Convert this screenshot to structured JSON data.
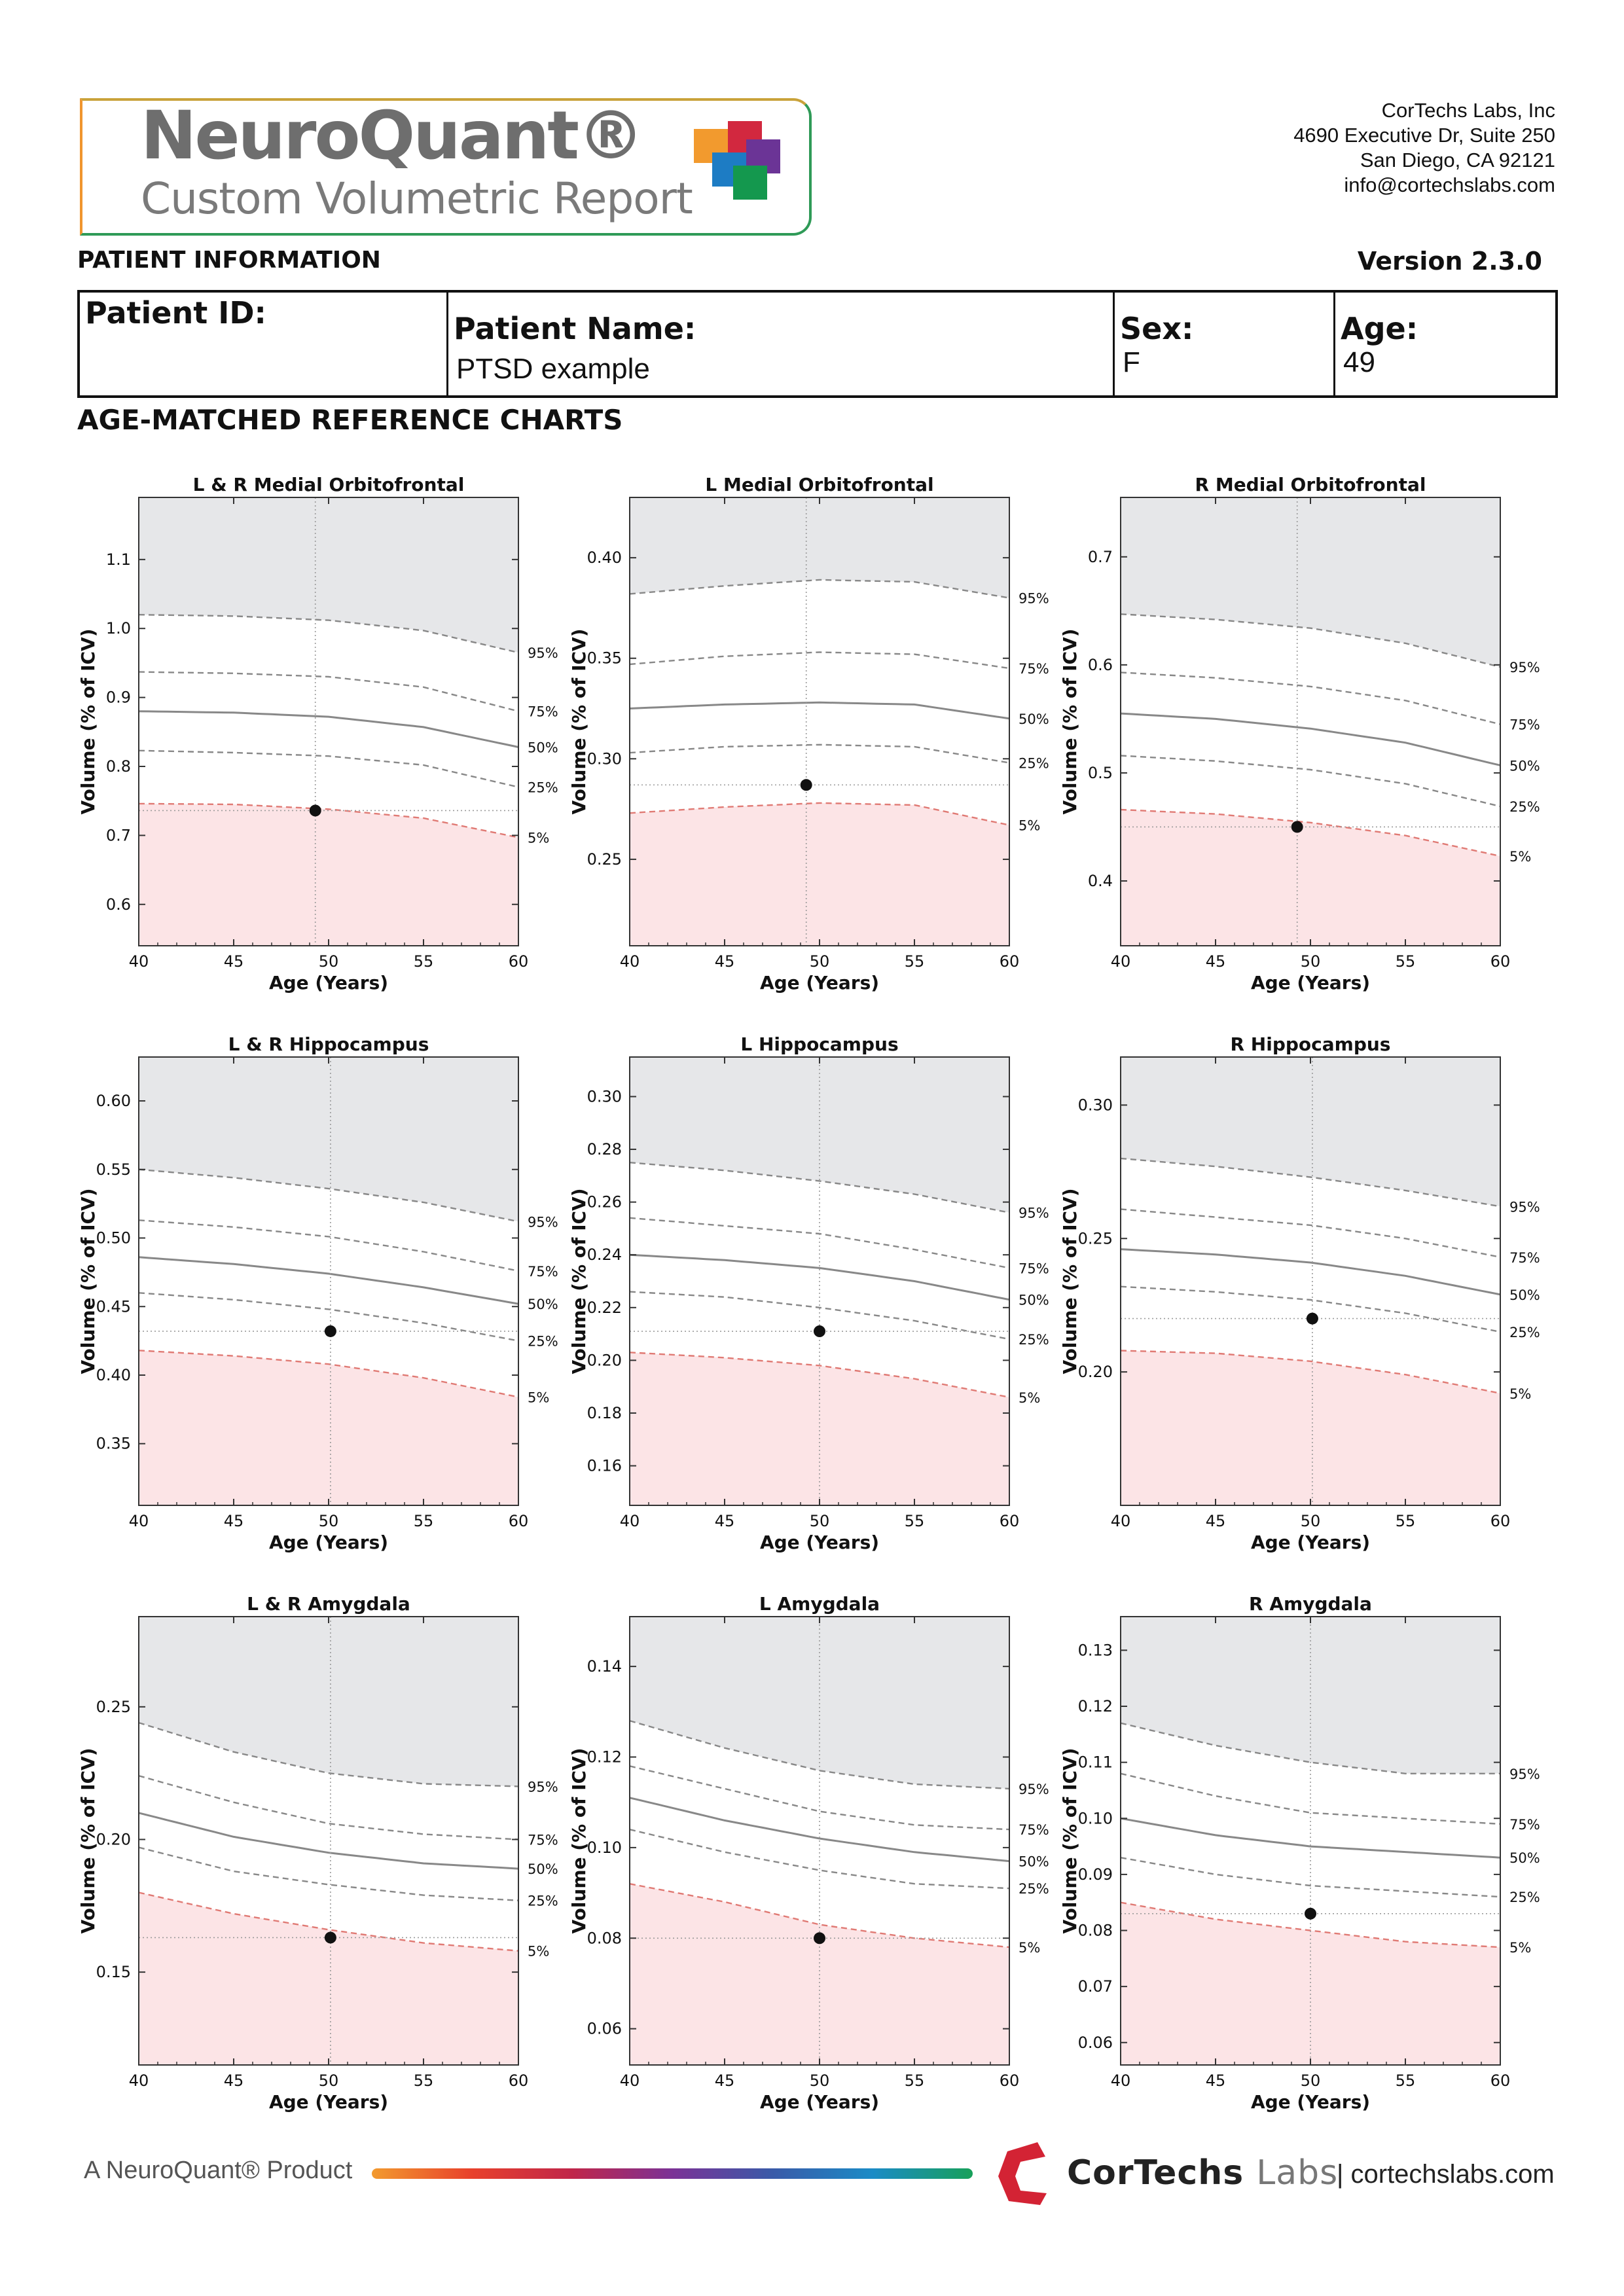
{
  "header": {
    "logo_title": "NeuroQuant®",
    "logo_subtitle": "Custom Volumetric Report",
    "company": {
      "name": "CorTechs Labs, Inc",
      "address1": "4690 Executive Dr, Suite 250",
      "address2": "San Diego, CA 92121",
      "email": "info@cortechslabs.com"
    },
    "patient_info_heading": "PATIENT INFORMATION",
    "version": "Version 2.3.0"
  },
  "patient": {
    "id_label": "Patient ID:",
    "id_value": "",
    "name_label": "Patient Name:",
    "name_value": "PTSD example",
    "sex_label": "Sex:",
    "sex_value": "F",
    "age_label": "Age:",
    "age_value": "49"
  },
  "charts_heading": "AGE-MATCHED REFERENCE CHARTS",
  "colors": {
    "upper_band": "#e6e7e9",
    "lower_band": "#fce4e6",
    "percentile_line": "#888888",
    "fifth_percentile_line": "#e07a74",
    "patient_point": "#111111"
  },
  "chart_data": [
    {
      "type": "line",
      "title": "L & R Medial Orbitofrontal",
      "xlabel": "Age (Years)",
      "ylabel": "Volume (% of ICV)",
      "xlim": [
        40,
        60
      ],
      "ylim": [
        0.54,
        1.19
      ],
      "xticks": [
        40,
        45,
        50,
        55,
        60
      ],
      "yticks": [
        0.6,
        0.7,
        0.8,
        0.9,
        1.0,
        1.1
      ],
      "ytick_labels": [
        "0.6",
        "0.7",
        "0.8",
        "0.9",
        "1.0",
        "1.1"
      ],
      "x": [
        40,
        45,
        50,
        55,
        60
      ],
      "series": [
        {
          "name": "95%",
          "values": [
            1.02,
            1.018,
            1.012,
            0.997,
            0.965
          ]
        },
        {
          "name": "75%",
          "values": [
            0.937,
            0.935,
            0.93,
            0.915,
            0.88
          ]
        },
        {
          "name": "50%",
          "values": [
            0.88,
            0.878,
            0.872,
            0.857,
            0.828
          ]
        },
        {
          "name": "25%",
          "values": [
            0.823,
            0.82,
            0.815,
            0.802,
            0.77
          ]
        },
        {
          "name": "5%",
          "values": [
            0.746,
            0.745,
            0.738,
            0.725,
            0.697
          ]
        }
      ],
      "patient": {
        "age": 49.3,
        "volume": 0.736
      }
    },
    {
      "type": "line",
      "title": "L Medial Orbitofrontal",
      "xlabel": "Age (Years)",
      "ylabel": "Volume (% of ICV)",
      "xlim": [
        40,
        60
      ],
      "ylim": [
        0.207,
        0.43
      ],
      "xticks": [
        40,
        45,
        50,
        55,
        60
      ],
      "yticks": [
        0.25,
        0.3,
        0.35,
        0.4
      ],
      "ytick_labels": [
        "0.25",
        "0.30",
        "0.35",
        "0.40"
      ],
      "x": [
        40,
        45,
        50,
        55,
        60
      ],
      "series": [
        {
          "name": "95%",
          "values": [
            0.382,
            0.386,
            0.389,
            0.388,
            0.38
          ]
        },
        {
          "name": "75%",
          "values": [
            0.347,
            0.351,
            0.353,
            0.352,
            0.345
          ]
        },
        {
          "name": "50%",
          "values": [
            0.325,
            0.327,
            0.328,
            0.327,
            0.32
          ]
        },
        {
          "name": "25%",
          "values": [
            0.303,
            0.306,
            0.307,
            0.306,
            0.298
          ]
        },
        {
          "name": "5%",
          "values": [
            0.273,
            0.276,
            0.278,
            0.277,
            0.267
          ]
        }
      ],
      "patient": {
        "age": 49.3,
        "volume": 0.287
      }
    },
    {
      "type": "line",
      "title": "R Medial Orbitofrontal",
      "xlabel": "Age (Years)",
      "ylabel": "Volume (% of ICV)",
      "xlim": [
        40,
        60
      ],
      "ylim": [
        0.34,
        0.755
      ],
      "xticks": [
        40,
        45,
        50,
        55,
        60
      ],
      "yticks": [
        0.4,
        0.5,
        0.6,
        0.7
      ],
      "ytick_labels": [
        "0.4",
        "0.5",
        "0.6",
        "0.7"
      ],
      "x": [
        40,
        45,
        50,
        55,
        60
      ],
      "series": [
        {
          "name": "95%",
          "values": [
            0.647,
            0.642,
            0.634,
            0.62,
            0.598
          ]
        },
        {
          "name": "75%",
          "values": [
            0.593,
            0.588,
            0.58,
            0.567,
            0.545
          ]
        },
        {
          "name": "50%",
          "values": [
            0.555,
            0.55,
            0.541,
            0.528,
            0.507
          ]
        },
        {
          "name": "25%",
          "values": [
            0.516,
            0.511,
            0.503,
            0.49,
            0.469
          ]
        },
        {
          "name": "5%",
          "values": [
            0.466,
            0.462,
            0.454,
            0.442,
            0.423
          ]
        }
      ],
      "patient": {
        "age": 49.3,
        "volume": 0.45
      }
    },
    {
      "type": "line",
      "title": "L & R Hippocampus",
      "xlabel": "Age (Years)",
      "ylabel": "Volume (% of ICV)",
      "xlim": [
        40,
        60
      ],
      "ylim": [
        0.305,
        0.632
      ],
      "xticks": [
        40,
        45,
        50,
        55,
        60
      ],
      "yticks": [
        0.35,
        0.4,
        0.45,
        0.5,
        0.55,
        0.6
      ],
      "ytick_labels": [
        "0.35",
        "0.40",
        "0.45",
        "0.50",
        "0.55",
        "0.60"
      ],
      "x": [
        40,
        45,
        50,
        55,
        60
      ],
      "series": [
        {
          "name": "95%",
          "values": [
            0.55,
            0.544,
            0.536,
            0.526,
            0.512
          ]
        },
        {
          "name": "75%",
          "values": [
            0.513,
            0.508,
            0.501,
            0.49,
            0.476
          ]
        },
        {
          "name": "50%",
          "values": [
            0.486,
            0.481,
            0.474,
            0.464,
            0.452
          ]
        },
        {
          "name": "25%",
          "values": [
            0.46,
            0.455,
            0.448,
            0.438,
            0.425
          ]
        },
        {
          "name": "5%",
          "values": [
            0.418,
            0.414,
            0.408,
            0.398,
            0.384
          ]
        }
      ],
      "patient": {
        "age": 50.1,
        "volume": 0.432
      }
    },
    {
      "type": "line",
      "title": "L Hippocampus",
      "xlabel": "Age (Years)",
      "ylabel": "Volume (% of ICV)",
      "xlim": [
        40,
        60
      ],
      "ylim": [
        0.145,
        0.315
      ],
      "xticks": [
        40,
        45,
        50,
        55,
        60
      ],
      "yticks": [
        0.16,
        0.18,
        0.2,
        0.22,
        0.24,
        0.26,
        0.28,
        0.3
      ],
      "ytick_labels": [
        "0.16",
        "0.18",
        "0.20",
        "0.22",
        "0.24",
        "0.26",
        "0.28",
        "0.30"
      ],
      "x": [
        40,
        45,
        50,
        55,
        60
      ],
      "series": [
        {
          "name": "95%",
          "values": [
            0.275,
            0.272,
            0.268,
            0.263,
            0.256
          ]
        },
        {
          "name": "75%",
          "values": [
            0.254,
            0.251,
            0.248,
            0.242,
            0.235
          ]
        },
        {
          "name": "50%",
          "values": [
            0.24,
            0.238,
            0.235,
            0.23,
            0.223
          ]
        },
        {
          "name": "25%",
          "values": [
            0.226,
            0.224,
            0.22,
            0.215,
            0.208
          ]
        },
        {
          "name": "5%",
          "values": [
            0.203,
            0.201,
            0.198,
            0.193,
            0.186
          ]
        }
      ],
      "patient": {
        "age": 50.0,
        "volume": 0.211
      }
    },
    {
      "type": "line",
      "title": "R Hippocampus",
      "xlabel": "Age (Years)",
      "ylabel": "Volume (% of ICV)",
      "xlim": [
        40,
        60
      ],
      "ylim": [
        0.15,
        0.318
      ],
      "xticks": [
        40,
        45,
        50,
        55,
        60
      ],
      "yticks": [
        0.2,
        0.25,
        0.3
      ],
      "ytick_labels": [
        "0.20",
        "0.25",
        "0.30"
      ],
      "x": [
        40,
        45,
        50,
        55,
        60
      ],
      "series": [
        {
          "name": "95%",
          "values": [
            0.28,
            0.277,
            0.273,
            0.268,
            0.262
          ]
        },
        {
          "name": "75%",
          "values": [
            0.261,
            0.258,
            0.255,
            0.25,
            0.243
          ]
        },
        {
          "name": "50%",
          "values": [
            0.246,
            0.244,
            0.241,
            0.236,
            0.229
          ]
        },
        {
          "name": "25%",
          "values": [
            0.232,
            0.23,
            0.227,
            0.222,
            0.215
          ]
        },
        {
          "name": "5%",
          "values": [
            0.208,
            0.207,
            0.204,
            0.199,
            0.192
          ]
        }
      ],
      "patient": {
        "age": 50.1,
        "volume": 0.22
      }
    },
    {
      "type": "line",
      "title": "L & R Amygdala",
      "xlabel": "Age (Years)",
      "ylabel": "Volume (% of ICV)",
      "xlim": [
        40,
        60
      ],
      "ylim": [
        0.115,
        0.284
      ],
      "xticks": [
        40,
        45,
        50,
        55,
        60
      ],
      "yticks": [
        0.15,
        0.2,
        0.25
      ],
      "ytick_labels": [
        "0.15",
        "0.20",
        "0.25"
      ],
      "x": [
        40,
        45,
        50,
        55,
        60
      ],
      "series": [
        {
          "name": "95%",
          "values": [
            0.244,
            0.233,
            0.225,
            0.221,
            0.22
          ]
        },
        {
          "name": "75%",
          "values": [
            0.224,
            0.214,
            0.206,
            0.202,
            0.2
          ]
        },
        {
          "name": "50%",
          "values": [
            0.21,
            0.201,
            0.195,
            0.191,
            0.189
          ]
        },
        {
          "name": "25%",
          "values": [
            0.197,
            0.188,
            0.183,
            0.179,
            0.177
          ]
        },
        {
          "name": "5%",
          "values": [
            0.18,
            0.172,
            0.166,
            0.161,
            0.158
          ]
        }
      ],
      "patient": {
        "age": 50.1,
        "volume": 0.163
      }
    },
    {
      "type": "line",
      "title": "L Amygdala",
      "xlabel": "Age (Years)",
      "ylabel": "Volume (% of ICV)",
      "xlim": [
        40,
        60
      ],
      "ylim": [
        0.052,
        0.151
      ],
      "xticks": [
        40,
        45,
        50,
        55,
        60
      ],
      "yticks": [
        0.06,
        0.08,
        0.1,
        0.12,
        0.14
      ],
      "ytick_labels": [
        "0.06",
        "0.08",
        "0.10",
        "0.12",
        "0.14"
      ],
      "x": [
        40,
        45,
        50,
        55,
        60
      ],
      "series": [
        {
          "name": "95%",
          "values": [
            0.128,
            0.122,
            0.117,
            0.114,
            0.113
          ]
        },
        {
          "name": "75%",
          "values": [
            0.118,
            0.113,
            0.108,
            0.105,
            0.104
          ]
        },
        {
          "name": "50%",
          "values": [
            0.111,
            0.106,
            0.102,
            0.099,
            0.097
          ]
        },
        {
          "name": "25%",
          "values": [
            0.104,
            0.099,
            0.095,
            0.092,
            0.091
          ]
        },
        {
          "name": "5%",
          "values": [
            0.092,
            0.088,
            0.083,
            0.08,
            0.078
          ]
        }
      ],
      "patient": {
        "age": 50.0,
        "volume": 0.08
      }
    },
    {
      "type": "line",
      "title": "R Amygdala",
      "xlabel": "Age (Years)",
      "ylabel": "Volume (% of ICV)",
      "xlim": [
        40,
        60
      ],
      "ylim": [
        0.056,
        0.136
      ],
      "xticks": [
        40,
        45,
        50,
        55,
        60
      ],
      "yticks": [
        0.06,
        0.07,
        0.08,
        0.09,
        0.1,
        0.11,
        0.12,
        0.13
      ],
      "ytick_labels": [
        "0.06",
        "0.07",
        "0.08",
        "0.09",
        "0.10",
        "0.11",
        "0.12",
        "0.13"
      ],
      "x": [
        40,
        45,
        50,
        55,
        60
      ],
      "series": [
        {
          "name": "95%",
          "values": [
            0.117,
            0.113,
            0.11,
            0.108,
            0.108
          ]
        },
        {
          "name": "75%",
          "values": [
            0.108,
            0.104,
            0.101,
            0.1,
            0.099
          ]
        },
        {
          "name": "50%",
          "values": [
            0.1,
            0.097,
            0.095,
            0.094,
            0.093
          ]
        },
        {
          "name": "25%",
          "values": [
            0.093,
            0.09,
            0.088,
            0.087,
            0.086
          ]
        },
        {
          "name": "5%",
          "values": [
            0.085,
            0.082,
            0.08,
            0.078,
            0.077
          ]
        }
      ],
      "patient": {
        "age": 50.0,
        "volume": 0.083
      }
    }
  ],
  "footer": {
    "product_text": "A NeuroQuant® Product",
    "brand_main": "CorTechs",
    "brand_labs": "Labs",
    "url": "| cortechslabs.com"
  }
}
